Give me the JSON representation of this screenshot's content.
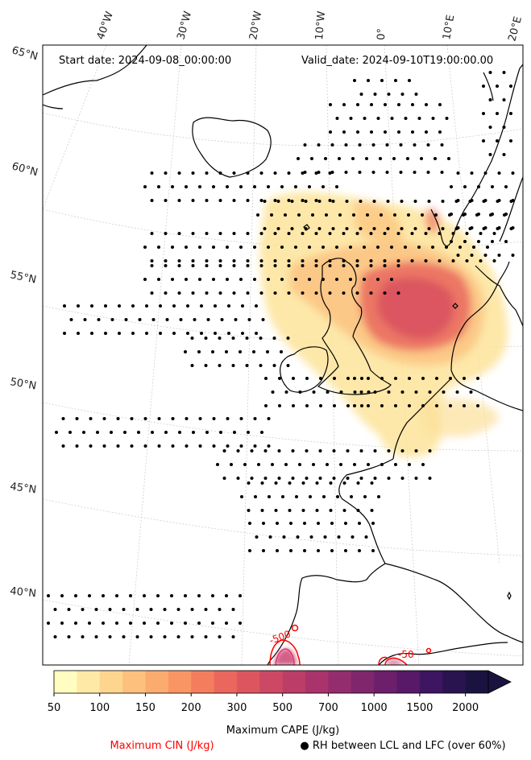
{
  "map": {
    "start_date": "Start date: 2024-09-08_00:00:00",
    "valid_date": "Valid_date: 2024-09-10T19:00:00.00",
    "lon_labels": [
      "40°W",
      "30°W",
      "20°W",
      "10°W",
      "0°",
      "10°E",
      "20°E"
    ],
    "lat_labels": [
      "65°N",
      "60°N",
      "55°N",
      "50°N",
      "45°N",
      "40°N"
    ],
    "cin_contour_labels": [
      "-500",
      "-50"
    ]
  },
  "colorbar": {
    "title": "Maximum CAPE (J/kg)",
    "ticks": [
      "50",
      "100",
      "150",
      "200",
      "300",
      "500",
      "700",
      "1000",
      "1500",
      "2000"
    ],
    "colors": [
      "#fffdc0",
      "#ffe9a6",
      "#fed58f",
      "#fdc17d",
      "#fcab6f",
      "#f99565",
      "#f47d5e",
      "#ea675e",
      "#dd555f",
      "#cd4864",
      "#bb3d68",
      "#a8346b",
      "#942d6d",
      "#80266d",
      "#6c1f6b",
      "#571968",
      "#3e1560",
      "#2a1450",
      "#1a1340"
    ]
  },
  "legend": {
    "cin_label": "Maximum CIN (J/kg)",
    "cin_color": "#ff0000",
    "rh_label": "● RH between LCL and LFC (over 60%)"
  }
}
